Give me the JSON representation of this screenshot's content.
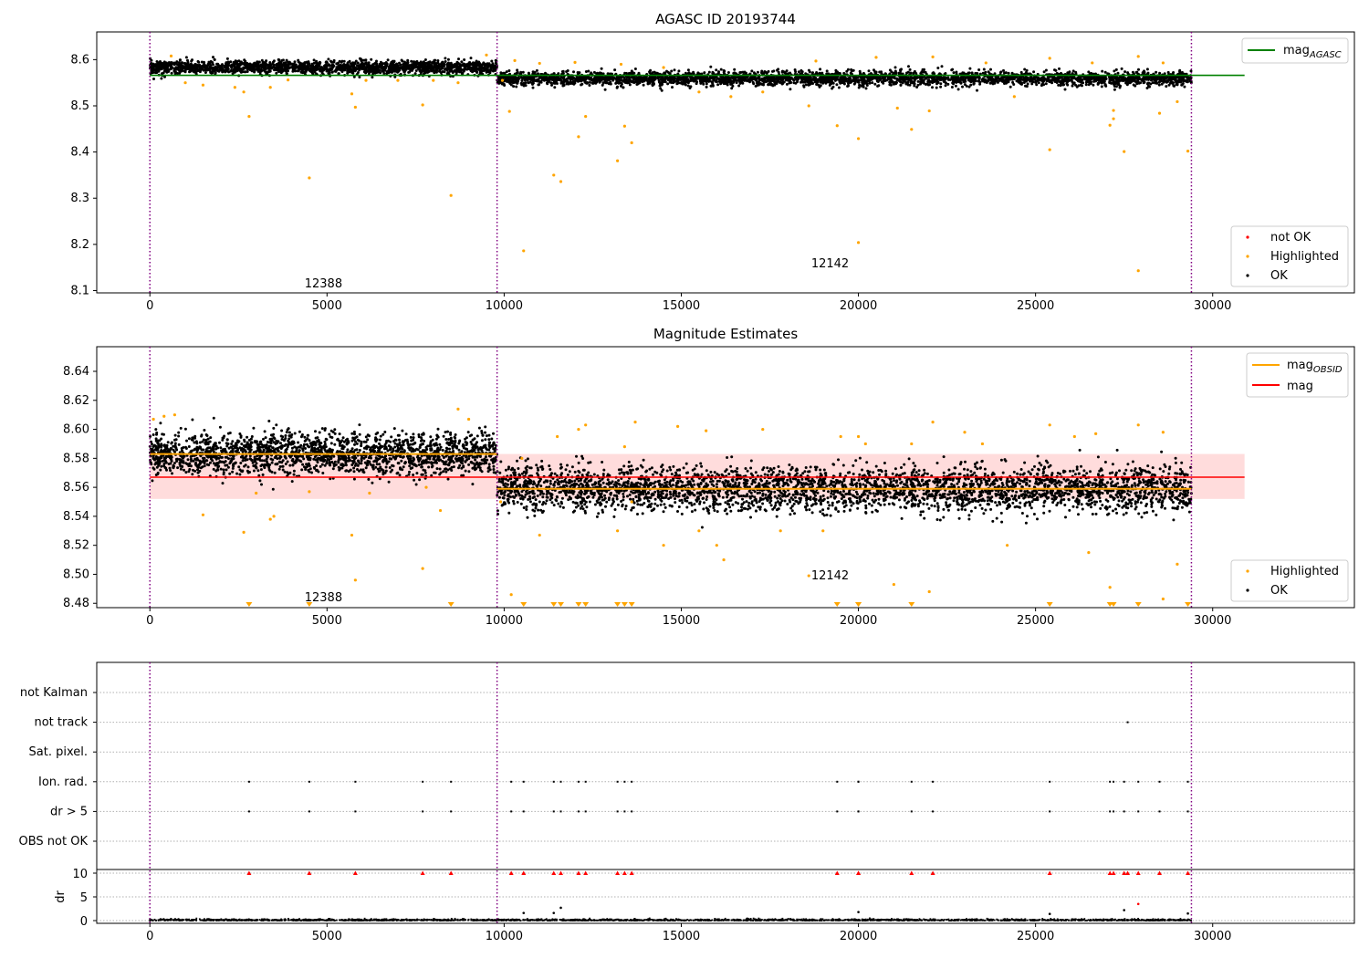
{
  "chart_data": [
    {
      "type": "scatter",
      "title": "AGASC ID 20193744",
      "xlim": [
        -1500,
        34000
      ],
      "ylim": [
        8.095,
        8.66
      ],
      "x_ticks": [
        0,
        5000,
        10000,
        15000,
        20000,
        25000,
        30000
      ],
      "y_ticks": [
        8.1,
        8.2,
        8.3,
        8.4,
        8.5,
        8.6
      ],
      "vlines": [
        0,
        9800,
        29400
      ],
      "hlines": [
        {
          "name": "mag_AGASC",
          "y": 8.566,
          "x_range": [
            0,
            30900
          ],
          "color": "#008000"
        }
      ],
      "annotations": [
        {
          "text": "12388",
          "x": 4900,
          "y": 8.115
        },
        {
          "text": "12142",
          "x": 19200,
          "y": 8.158
        }
      ],
      "series": [
        {
          "name": "not OK",
          "color": "#ff0000",
          "points": []
        },
        {
          "name": "Highlighted",
          "color": "#ffa500",
          "points": [
            [
              2650,
              8.53
            ],
            [
              2800,
              8.477
            ],
            [
              3400,
              8.54
            ],
            [
              4500,
              8.344
            ],
            [
              5700,
              8.526
            ],
            [
              5800,
              8.497
            ],
            [
              7700,
              8.502
            ],
            [
              8500,
              8.306
            ],
            [
              8700,
              8.55
            ],
            [
              9950,
              8.555
            ],
            [
              10150,
              8.488
            ],
            [
              10550,
              8.186
            ],
            [
              11400,
              8.35
            ],
            [
              11600,
              8.336
            ],
            [
              12100,
              8.433
            ],
            [
              12300,
              8.477
            ],
            [
              13200,
              8.381
            ],
            [
              13400,
              8.456
            ],
            [
              13600,
              8.42
            ],
            [
              18600,
              8.5
            ],
            [
              19400,
              8.457
            ],
            [
              20000,
              8.429
            ],
            [
              20000,
              8.204
            ],
            [
              21100,
              8.495
            ],
            [
              21500,
              8.449
            ],
            [
              22000,
              8.489
            ],
            [
              25400,
              8.405
            ],
            [
              27100,
              8.458
            ],
            [
              27200,
              8.472
            ],
            [
              27200,
              8.49
            ],
            [
              27500,
              8.401
            ],
            [
              28500,
              8.484
            ],
            [
              27900,
              8.143
            ],
            [
              29000,
              8.509
            ],
            [
              29300,
              8.402
            ],
            [
              600,
              8.608
            ],
            [
              1000,
              8.55
            ],
            [
              1500,
              8.545
            ],
            [
              2400,
              8.54
            ],
            [
              3900,
              8.556
            ],
            [
              6100,
              8.555
            ],
            [
              7000,
              8.555
            ],
            [
              8000,
              8.555
            ],
            [
              9500,
              8.61
            ],
            [
              10300,
              8.598
            ],
            [
              11000,
              8.592
            ],
            [
              12000,
              8.594
            ],
            [
              13300,
              8.59
            ],
            [
              14500,
              8.583
            ],
            [
              15500,
              8.53
            ],
            [
              16400,
              8.52
            ],
            [
              17300,
              8.53
            ],
            [
              18800,
              8.597
            ],
            [
              20500,
              8.605
            ],
            [
              22100,
              8.606
            ],
            [
              23600,
              8.593
            ],
            [
              24400,
              8.52
            ],
            [
              25400,
              8.603
            ],
            [
              26600,
              8.593
            ],
            [
              27900,
              8.607
            ],
            [
              28600,
              8.593
            ]
          ]
        },
        {
          "name": "OK",
          "color": "#000000",
          "segments": [
            {
              "x_range": [
                0,
                9800
              ],
              "y_center": 8.583,
              "y_spread": 0.013,
              "n": 1800
            },
            {
              "x_range": [
                9800,
                29400
              ],
              "y_center": 8.559,
              "y_spread": 0.014,
              "n": 3200
            }
          ]
        }
      ]
    },
    {
      "type": "scatter",
      "title": "Magnitude Estimates",
      "xlim": [
        -1500,
        34000
      ],
      "ylim": [
        8.477,
        8.657
      ],
      "x_ticks": [
        0,
        5000,
        10000,
        15000,
        20000,
        25000,
        30000
      ],
      "y_ticks": [
        8.48,
        8.5,
        8.52,
        8.54,
        8.56,
        8.58,
        8.6,
        8.62,
        8.64
      ],
      "y_tick_labels": [
        "8.48",
        "8.50",
        "8.52",
        "8.54",
        "8.56",
        "8.58",
        "8.60",
        "8.62",
        "8.64"
      ],
      "vlines": [
        0,
        9800,
        29400
      ],
      "mag_band": {
        "y_low": 8.552,
        "y_high": 8.583,
        "x_range": [
          0,
          30900
        ],
        "color": "#ffdcdc"
      },
      "hlines": [
        {
          "name": "mag_OBSID",
          "color": "#ffa500",
          "segments": [
            {
              "x_range": [
                0,
                9800
              ],
              "y": 8.583
            },
            {
              "x_range": [
                9800,
                29400
              ],
              "y": 8.559
            }
          ]
        },
        {
          "name": "mag",
          "color": "#ff0000",
          "y": 8.567,
          "x_range": [
            0,
            30900
          ]
        }
      ],
      "annotations": [
        {
          "text": "12388",
          "x": 4900,
          "y": 8.484
        },
        {
          "text": "12142",
          "x": 19200,
          "y": 8.499
        }
      ],
      "series": [
        {
          "name": "Highlighted",
          "color": "#ffa500",
          "points": [
            [
              100,
              8.607
            ],
            [
              400,
              8.609
            ],
            [
              700,
              8.61
            ],
            [
              1500,
              8.541
            ],
            [
              2650,
              8.529
            ],
            [
              3400,
              8.538
            ],
            [
              3500,
              8.54
            ],
            [
              5700,
              8.527
            ],
            [
              5800,
              8.496
            ],
            [
              7700,
              8.504
            ],
            [
              8200,
              8.544
            ],
            [
              8700,
              8.614
            ],
            [
              9000,
              8.607
            ],
            [
              9900,
              8.55
            ],
            [
              10200,
              8.486
            ],
            [
              10500,
              8.58
            ],
            [
              11000,
              8.527
            ],
            [
              11500,
              8.595
            ],
            [
              12100,
              8.6
            ],
            [
              12300,
              8.603
            ],
            [
              13200,
              8.53
            ],
            [
              13400,
              8.588
            ],
            [
              13600,
              8.55
            ],
            [
              13700,
              8.605
            ],
            [
              14500,
              8.52
            ],
            [
              14900,
              8.602
            ],
            [
              15500,
              8.53
            ],
            [
              15700,
              8.599
            ],
            [
              16000,
              8.52
            ],
            [
              16200,
              8.51
            ],
            [
              17300,
              8.6
            ],
            [
              17800,
              8.53
            ],
            [
              18600,
              8.499
            ],
            [
              19000,
              8.53
            ],
            [
              19500,
              8.595
            ],
            [
              20000,
              8.595
            ],
            [
              20200,
              8.59
            ],
            [
              21000,
              8.493
            ],
            [
              21500,
              8.59
            ],
            [
              22000,
              8.488
            ],
            [
              22100,
              8.605
            ],
            [
              23000,
              8.598
            ],
            [
              23500,
              8.59
            ],
            [
              24200,
              8.52
            ],
            [
              25400,
              8.603
            ],
            [
              26100,
              8.595
            ],
            [
              26500,
              8.515
            ],
            [
              26700,
              8.597
            ],
            [
              27100,
              8.491
            ],
            [
              27900,
              8.603
            ],
            [
              28600,
              8.598
            ],
            [
              28600,
              8.483
            ],
            [
              29000,
              8.507
            ],
            [
              3000,
              8.556
            ],
            [
              4500,
              8.557
            ],
            [
              6200,
              8.556
            ],
            [
              7800,
              8.56
            ]
          ]
        },
        {
          "name": "Highlighted (below range)",
          "color": "#ffa500",
          "markers_x": [
            2800,
            4500,
            8500,
            10550,
            11400,
            11600,
            12100,
            12300,
            13200,
            13400,
            13600,
            19400,
            20000,
            20000,
            21500,
            25400,
            27100,
            27200,
            27900,
            29300
          ]
        },
        {
          "name": "OK",
          "color": "#000000",
          "segments": [
            {
              "x_range": [
                0,
                9800
              ],
              "y_center": 8.583,
              "y_spread": 0.013,
              "n": 2000
            },
            {
              "x_range": [
                9800,
                29400
              ],
              "y_center": 8.559,
              "y_spread": 0.014,
              "n": 3400
            }
          ]
        }
      ]
    },
    {
      "type": "scatter",
      "title": "",
      "xlim": [
        -1500,
        34000
      ],
      "x_ticks": [
        0,
        5000,
        10000,
        15000,
        20000,
        25000,
        30000
      ],
      "vlines": [
        0,
        9800,
        29400
      ],
      "flag_rows": [
        "not Kalman",
        "not track",
        "Sat. pixel.",
        "Ion. rad.",
        "dr > 5",
        "OBS not OK"
      ],
      "flags": {
        "not track": [
          27600
        ],
        "Ion. rad.": [
          2800,
          4500,
          5800,
          7700,
          8500,
          10200,
          10550,
          11400,
          11600,
          12100,
          12300,
          13200,
          13400,
          13600,
          19400,
          20000,
          20000,
          21500,
          22100,
          25400,
          27100,
          27200,
          27500,
          27900,
          28500,
          29300
        ],
        "dr > 5": [
          2800,
          4500,
          5800,
          7700,
          8500,
          10200,
          10550,
          11400,
          11600,
          12100,
          12300,
          13200,
          13400,
          13600,
          19400,
          20000,
          20000,
          21500,
          22100,
          25400,
          27100,
          27200,
          27500,
          27900,
          28500,
          29300
        ]
      },
      "dr": {
        "ylabel": "dr",
        "ylim": [
          0,
          10
        ],
        "y_ticks": [
          0,
          5,
          10
        ],
        "capped_at_10": [
          2800,
          4500,
          5800,
          7700,
          8500,
          10200,
          10550,
          11400,
          11600,
          12100,
          12300,
          13200,
          13400,
          13600,
          19400,
          20000,
          20000,
          21500,
          22100,
          25400,
          27100,
          27200,
          27500,
          27600,
          27900,
          28500,
          29300
        ],
        "outliers": [
          [
            10550,
            1.6
          ],
          [
            11400,
            1.6
          ],
          [
            11600,
            2.7
          ],
          [
            20000,
            1.8
          ],
          [
            25400,
            1.4
          ],
          [
            27500,
            2.2
          ],
          [
            27900,
            3.5
          ],
          [
            29300,
            1.5
          ]
        ]
      }
    }
  ]
}
